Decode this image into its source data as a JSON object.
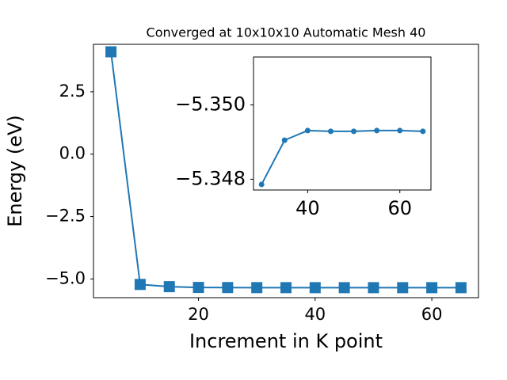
{
  "chart_data": [
    {
      "type": "line",
      "title": "Converged at 10x10x10 Automatic Mesh 40",
      "x_label": "Increment in K point",
      "y_label": "Energy (eV)",
      "x": [
        5,
        10,
        15,
        20,
        25,
        30,
        35,
        40,
        45,
        50,
        55,
        60,
        65
      ],
      "series": [
        {
          "name": "Energy",
          "color": "#1f77b4",
          "marker": "square",
          "values": [
            4.1,
            -5.22,
            -5.31,
            -5.34,
            -5.345,
            -5.34786,
            -5.34905,
            -5.34931,
            -5.34929,
            -5.34929,
            -5.34931,
            -5.34931,
            -5.34929
          ]
        }
      ],
      "xlim": [
        2,
        68
      ],
      "xticks": [
        20,
        40,
        60
      ],
      "ylim": [
        -5.75,
        4.4
      ],
      "yticks": [
        {
          "value": -5.0,
          "label": "−5.0"
        },
        {
          "value": -2.5,
          "label": "−2.5"
        },
        {
          "value": 0,
          "label": "0.0"
        },
        2.5
      ]
    },
    {
      "type": "line",
      "x": [
        30,
        35,
        40,
        45,
        50,
        55,
        60,
        65
      ],
      "series": [
        {
          "name": "Energy",
          "color": "#1f77b4",
          "marker": "circle",
          "values": [
            -5.34786,
            -5.34905,
            -5.34931,
            -5.34929,
            -5.34929,
            -5.34931,
            -5.34931,
            -5.34929
          ]
        }
      ],
      "xlim": [
        28.25,
        66.75
      ],
      "xticks": [
        40,
        60
      ],
      "ylim": [
        -5.34771,
        -5.35129
      ],
      "yticks": [
        {
          "value": -5.348,
          "label": "−5.348"
        },
        {
          "value": -5.35,
          "label": "−5.350"
        }
      ]
    }
  ]
}
